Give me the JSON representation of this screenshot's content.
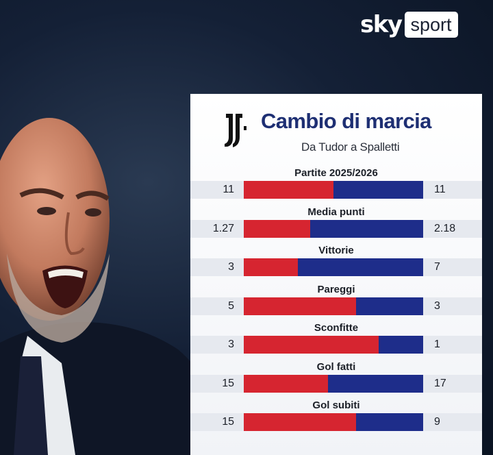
{
  "logo": {
    "sky": "sky",
    "sport": "sport"
  },
  "card": {
    "title": "Cambio di marcia",
    "subtitle": "Da Tudor a Spalletti",
    "colors": {
      "tudor": "#d62530",
      "spalletti": "#1e2d8a",
      "title": "#1e2f73"
    },
    "stats": [
      {
        "label": "Partite 2025/2026",
        "left": "11",
        "right": "11",
        "left_share": 0.5
      },
      {
        "label": "Media punti",
        "left": "1.27",
        "right": "2.18",
        "left_share": 0.37
      },
      {
        "label": "Vittorie",
        "left": "3",
        "right": "7",
        "left_share": 0.3
      },
      {
        "label": "Pareggi",
        "left": "5",
        "right": "3",
        "left_share": 0.625
      },
      {
        "label": "Sconfitte",
        "left": "3",
        "right": "1",
        "left_share": 0.75
      },
      {
        "label": "Gol fatti",
        "left": "15",
        "right": "17",
        "left_share": 0.47
      },
      {
        "label": "Gol subiti",
        "left": "15",
        "right": "9",
        "left_share": 0.625
      }
    ]
  }
}
